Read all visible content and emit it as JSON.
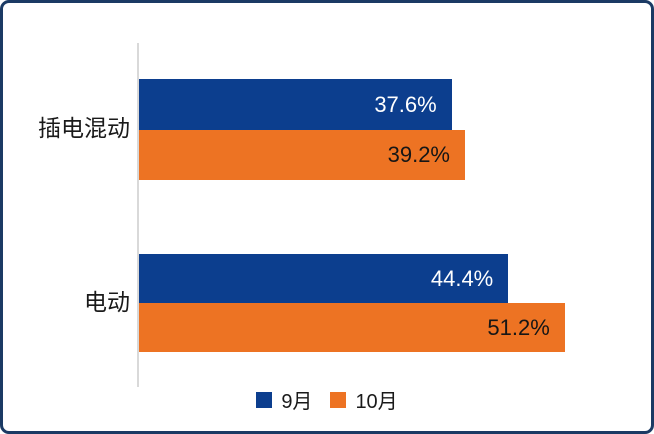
{
  "frame": {
    "border_color": "#1B3A64",
    "background": "#FFFFFF"
  },
  "chart_data": {
    "type": "bar",
    "orientation": "horizontal",
    "title": "",
    "xlabel": "",
    "ylabel": "",
    "grid": false,
    "axis_max": 60,
    "axis_line_color": "#D9D9D9",
    "legend_position": "bottom",
    "categories": [
      "插电混动",
      "电动"
    ],
    "series": [
      {
        "name": "9月",
        "color": "#0C3E8E",
        "label_color": "#FFFFFF",
        "values": [
          37.6,
          44.4
        ],
        "labels": [
          "37.6%",
          "44.4%"
        ]
      },
      {
        "name": "10月",
        "color": "#ED7323",
        "label_color": "#161616",
        "values": [
          39.2,
          51.2
        ],
        "labels": [
          "39.2%",
          "51.2%"
        ]
      }
    ]
  }
}
